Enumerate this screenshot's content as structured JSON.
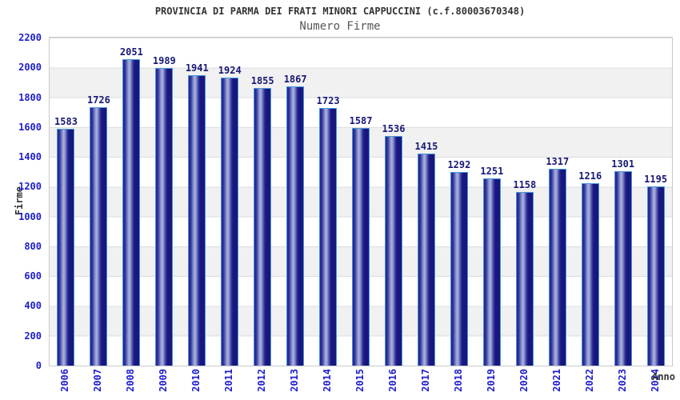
{
  "chart_data": {
    "type": "bar",
    "title": "PROVINCIA DI PARMA DEI FRATI MINORI CAPPUCCINI (c.f.80003670348)",
    "subtitle": "Numero Firme",
    "xlabel": "Anno",
    "ylabel": "Firme",
    "ylim": [
      0,
      2200
    ],
    "yticks": [
      0,
      200,
      400,
      600,
      800,
      1000,
      1200,
      1400,
      1600,
      1800,
      2000,
      2200
    ],
    "categories": [
      "2006",
      "2007",
      "2008",
      "2009",
      "2010",
      "2011",
      "2012",
      "2013",
      "2014",
      "2015",
      "2016",
      "2017",
      "2018",
      "2019",
      "2020",
      "2021",
      "2022",
      "2023",
      "2024"
    ],
    "values": [
      1583,
      1726,
      2051,
      1989,
      1941,
      1924,
      1855,
      1867,
      1723,
      1587,
      1536,
      1415,
      1292,
      1251,
      1158,
      1317,
      1216,
      1301,
      1195
    ],
    "grid": "horizontal-bands-alternating",
    "legend_position": "none"
  },
  "colors": {
    "bar_dark": "#17177e",
    "bar_highlight": "#aab3de",
    "bar_border": "#4596dd",
    "value_label": "#181878",
    "tick_label": "#1d1dd0",
    "title_text": "#333333",
    "subtitle_text": "#555555",
    "band_gray": "#f1f1f1",
    "band_white": "#ffffff",
    "gridline": "#dcdcdc",
    "plot_border": "#c9c9c9"
  }
}
